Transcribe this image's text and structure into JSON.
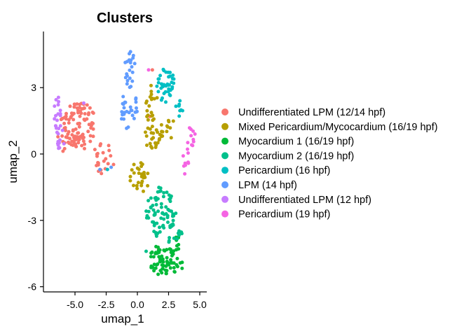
{
  "chart_data": {
    "type": "scatter",
    "title": "Clusters",
    "xlabel": "umap_1",
    "ylabel": "umap_2",
    "xlim": [
      -7.2,
      5.5
    ],
    "ylim": [
      -6.3,
      5.5
    ],
    "x_ticks": [
      -5.0,
      -2.5,
      0.0,
      2.5,
      5.0
    ],
    "x_tick_labels": [
      "-5.0",
      "-2.5",
      "0.0",
      "2.5",
      "5.0"
    ],
    "y_ticks": [
      -6,
      -3,
      0,
      3
    ],
    "y_tick_labels": [
      "-6",
      "-3",
      "0",
      "3"
    ],
    "grid": false,
    "legend_position": "right",
    "series": [
      {
        "name": "Undifferentiated LPM (12/14 hpf)",
        "color": "#F8766D",
        "regions": [
          {
            "cx": -4.6,
            "cy": 1.3,
            "rx": 1.3,
            "ry": 1.1,
            "n": 95
          },
          {
            "cx": -2.7,
            "cy": -0.2,
            "rx": 0.9,
            "ry": 0.7,
            "n": 22
          },
          {
            "cx": -5.9,
            "cy": 0.9,
            "rx": 0.5,
            "ry": 0.8,
            "n": 12
          }
        ],
        "points": [
          [
            1.2,
            3.8
          ],
          [
            1.0,
            1.7
          ],
          [
            1.7,
            -4.3
          ]
        ]
      },
      {
        "name": "Mixed Pericardium/Mycocardium (16/19 hpf)",
        "color": "#B79F00",
        "regions": [
          {
            "cx": 1.1,
            "cy": 2.3,
            "rx": 0.5,
            "ry": 0.9,
            "n": 20
          },
          {
            "cx": 1.3,
            "cy": 0.9,
            "rx": 0.8,
            "ry": 0.7,
            "n": 28
          },
          {
            "cx": 0.2,
            "cy": -1.1,
            "rx": 0.8,
            "ry": 0.8,
            "n": 28
          },
          {
            "cx": 2.7,
            "cy": 1.2,
            "rx": 0.4,
            "ry": 0.5,
            "n": 8
          }
        ],
        "points": []
      },
      {
        "name": "Myocardium 1 (16/19 hpf)",
        "color": "#00BA38",
        "regions": [
          {
            "cx": 2.0,
            "cy": -4.8,
            "rx": 1.1,
            "ry": 0.7,
            "n": 60
          },
          {
            "cx": 3.2,
            "cy": -4.6,
            "rx": 0.5,
            "ry": 0.9,
            "n": 18
          }
        ],
        "points": []
      },
      {
        "name": "Myocardium 2 (16/19 hpf)",
        "color": "#00C08B",
        "regions": [
          {
            "cx": 1.9,
            "cy": -2.6,
            "rx": 1.2,
            "ry": 1.2,
            "n": 75
          },
          {
            "cx": 3.0,
            "cy": -3.7,
            "rx": 0.6,
            "ry": 0.5,
            "n": 10
          }
        ],
        "points": [
          [
            0.7,
            -4.4
          ]
        ]
      },
      {
        "name": "Pericardium (16 hpf)",
        "color": "#00BFC4",
        "regions": [
          {
            "cx": 2.3,
            "cy": 3.1,
            "rx": 0.8,
            "ry": 0.8,
            "n": 40
          },
          {
            "cx": 3.3,
            "cy": 2.1,
            "rx": 0.4,
            "ry": 0.4,
            "n": 8
          }
        ],
        "points": [
          [
            -2.4,
            -0.7
          ]
        ]
      },
      {
        "name": "LPM (14 hpf)",
        "color": "#619CFF",
        "regions": [
          {
            "cx": -0.6,
            "cy": 3.9,
            "rx": 0.45,
            "ry": 0.9,
            "n": 20
          },
          {
            "cx": -0.7,
            "cy": 2.1,
            "rx": 0.7,
            "ry": 1.0,
            "n": 30
          }
        ],
        "points": [
          [
            -3.0,
            -0.7
          ],
          [
            -2.1,
            -0.6
          ]
        ]
      },
      {
        "name": "Undifferentiated LPM (12 hpf)",
        "color": "#C77CFF",
        "regions": [
          {
            "cx": -6.4,
            "cy": 1.7,
            "rx": 0.3,
            "ry": 0.9,
            "n": 18
          },
          {
            "cx": -6.1,
            "cy": 0.6,
            "rx": 0.4,
            "ry": 0.5,
            "n": 10
          }
        ],
        "points": [
          [
            -4.3,
            2.3
          ]
        ]
      },
      {
        "name": "Pericardium (19 hpf)",
        "color": "#F564E3",
        "regions": [
          {
            "cx": 4.3,
            "cy": 0.8,
            "rx": 0.35,
            "ry": 0.6,
            "n": 10
          },
          {
            "cx": 3.9,
            "cy": -0.2,
            "rx": 0.3,
            "ry": 0.5,
            "n": 8
          }
        ],
        "points": [
          [
            0.9,
            3.8
          ],
          [
            3.8,
            -0.9
          ]
        ]
      }
    ]
  }
}
